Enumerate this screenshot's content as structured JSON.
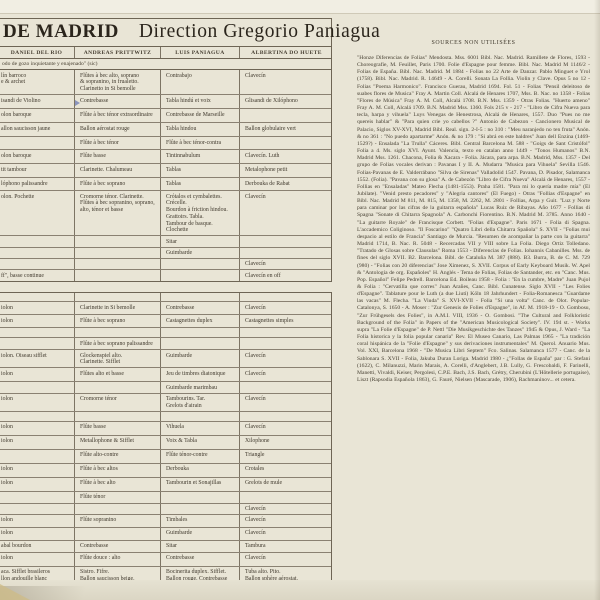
{
  "album": {
    "title_left": "DE MADRID",
    "title_right": "Direction Gregorio Paniagua"
  },
  "performers": [
    "DANIEL DEL RIO",
    "ANDREAS PRITTWITZ",
    "LUIS PANIAGUA",
    "ALBERTINA DO HUETE"
  ],
  "note": "odo de gozo inquietante y enajenado\" (sic)",
  "instrument_table": {
    "section1": {
      "rows": [
        {
          "h": 24,
          "cells": [
            "lín barroco\ne & archet",
            "Flûtes à bec alto, soprano\n& sopranino, in frualetto.\nClarinetto in Si bemolle",
            "Contrabajo",
            "Clavecín"
          ]
        },
        {
          "h": 14,
          "cells": [
            "isandi de Violino",
            "Contrebasse",
            "Tabla hindú et voix",
            "Glisandi de Xilóphono"
          ]
        },
        {
          "h": 14,
          "cells": [
            "olon baroque",
            "Flûte à bec ténor extraordinaire",
            "Contrebasse de Marseille",
            ""
          ]
        },
        {
          "h": 14,
          "cells": [
            "allon saucisson jaune",
            "Ballon aérostat rouge",
            "Tabla hindou",
            "Ballon globulaire vert"
          ]
        },
        {
          "h": 13,
          "cells": [
            "",
            "Flûte à bec ténor",
            "Flûte à bec ténor-contra",
            ""
          ]
        },
        {
          "h": 14,
          "cells": [
            "olon baroque",
            "Flûte basse",
            "Tintinnabulum",
            "Clavecín. Luth"
          ]
        },
        {
          "h": 14,
          "cells": [
            "tit tambour",
            "Clarinette. Chalumeau",
            "Tablas",
            "Metalophone petit"
          ]
        },
        {
          "h": 13,
          "cells": [
            "lóphono palissandre",
            "Flûte à bec soprano",
            "Tablas",
            "Derbouka de Rabat"
          ]
        },
        {
          "h": 38,
          "cells": [
            "olon. Pochette",
            "Cromorne ténor. Clarinette.\nFlûtes à bec sopranino, soprano,\nalto, ténor et basse",
            "Crótalos et cymbalettes.\nCrécelle.\nBourdon à friction hindou.\nGrattoirs. Tabla.\nTambour de basque. Clochette",
            "Clavecín"
          ]
        },
        {
          "h": 10,
          "cells": [
            "",
            "",
            "Sitar",
            ""
          ]
        },
        {
          "h": 10,
          "cells": [
            "",
            "",
            "Guimbarde",
            ""
          ]
        },
        {
          "h": 10,
          "cells": [
            "",
            "",
            "",
            "Clavecín"
          ]
        },
        {
          "h": 12,
          "cells": [
            "ff\", basse continue",
            "",
            "",
            "Clavecín en off"
          ]
        }
      ]
    },
    "section2": {
      "rows": [
        {
          "h": 8,
          "cells": [
            "",
            "",
            "",
            ""
          ]
        },
        {
          "h": 13,
          "cells": [
            "iolon",
            "Clarinette in Si bemolle",
            "Contrebasse",
            "Clavecín"
          ]
        },
        {
          "h": 13,
          "cells": [
            "iolon",
            "Flûte à bec soprano",
            "Castagnettes duplex",
            "Castagnettes simples"
          ]
        },
        {
          "h": 10,
          "cells": [
            "",
            "",
            "",
            ""
          ]
        },
        {
          "h": 12,
          "cells": [
            "",
            "Flûte à bec soprano palissandre",
            "",
            ""
          ]
        },
        {
          "h": 17,
          "cells": [
            "iolon. Oiseau sifflet",
            "Glockenspiel alto.\nClarinette. Sifflet",
            "Guimbarde",
            "Clavecín"
          ]
        },
        {
          "h": 14,
          "cells": [
            "iolon",
            "Flûtes alto et basse",
            "Jeu de timbres diatonique",
            "Clavecín"
          ]
        },
        {
          "h": 11,
          "cells": [
            "",
            "",
            "Guimbarde marimbau",
            ""
          ]
        },
        {
          "h": 17,
          "cells": [
            "iolon",
            "Cromorne ténor",
            "Tambourins. Tar.\nGrelots d'airain",
            "Clavecín"
          ]
        },
        {
          "h": 10,
          "cells": [
            "",
            "",
            "",
            ""
          ]
        },
        {
          "h": 14,
          "cells": [
            "iolon",
            "Flûte basse",
            "Vihuela",
            "Clavecín"
          ]
        },
        {
          "h": 14,
          "cells": [
            "iolon",
            "Metallophone & Sifflet",
            "Voix & Tabla",
            "Xilophone"
          ]
        },
        {
          "h": 14,
          "cells": [
            "",
            "Flûte alto-contre",
            "Flûte ténor-contre",
            "Triangle"
          ]
        },
        {
          "h": 14,
          "cells": [
            "iolon",
            "Flûte à bec altos",
            "Derbouka",
            "Crotales"
          ]
        },
        {
          "h": 14,
          "cells": [
            "iolon",
            "Flûte à bec alto",
            "Tambourin et Sonajillas",
            "Grelots de mule"
          ]
        },
        {
          "h": 12,
          "cells": [
            "",
            "Flûte ténor",
            "",
            ""
          ]
        },
        {
          "h": 11,
          "cells": [
            "",
            "",
            "",
            "Clavecín"
          ]
        },
        {
          "h": 13,
          "cells": [
            "iolon",
            "Flûte sopranino",
            "Timbales",
            "Clavecín"
          ]
        },
        {
          "h": 13,
          "cells": [
            "iolon",
            "",
            "Guimbarde",
            "Clavecín"
          ]
        },
        {
          "h": 12,
          "cells": [
            "abal bourdon",
            "Contrebasse",
            "Sitar",
            "Tambura"
          ]
        },
        {
          "h": 14,
          "cells": [
            "iolon",
            "Flûte douce : alto",
            "Contrebasse",
            "Clavecín"
          ]
        },
        {
          "h": 24,
          "cells": [
            "aca. Sifflet brasileros\nllon andouille blanc\niolon",
            "Sistro. Fifre.\nBallon saucisson beige.\nFlûte soprano. Clarinette",
            "Bocinerita duplex. Sifflet.\nBallon rouge. Contrebasse",
            "Tuba alto. Pito.\nBallon sphère aérostat.\nClavecín"
          ]
        }
      ]
    }
  },
  "sources": {
    "heading": "SOURCES NON UTILISÉES",
    "text": "\"Honze Diferencias de Folias\" Mendosta. Mss. 6001 Bibl. Nac. Madrid. Ramillete de Flores, 1593 - Choreografie, M. Feuillet, Paris 1700. Folie d'Espagne pour femme. Bibl. Nac. Madrid M 1146/2 - Folias de España. Bibl. Nac. Madrid. M 1884 - Folias no 22 Arte de Danzar. Pablo Minguet e Yrol (1758). Bibl. Nac. Madrid. R. 14649 - A. Corelli. Sonata La Follia. Violin y Clave. Opus 5 no 12 - Folias \"Poema Harmonico\". Francisco Guerau, Madrid 1694. Fol. 51 - Folias \"Pensil deleitoso de suabes flores de Musica\" Fray A. Martin Coll. Alcalá de Henares 1707, Mss. B. Nac. no 1358 - Folias \"Flores de Música\" Fray A. M. Coll, Alcalá 1708. B.N. Mss. 1359 - Otras Folias. \"Huerto ameno\" Fray A. M. Coll, Alcalá 1709. B.N. Madrid Mss. 1360. Fols 215 v - 217 - \"Libro de Cifra Nueva para tecla, harpa y vihuela\" Luys Venegas de Henestrosa, Alcalá de Henares, 1557. Duo \"Pues no me quereis hablar\" & \"Para quien crie yo cabellos ?\" Antonio de Cabezon - Cancionero Musical de Palacio, Siglos XV-XVI, Madrid Bibl. Real. sign. 2-I-5 : no 310 : \"Meu naranjedo no ten fruta\" Anón. & no 361 : \"No puedo apartarme\" Anón. & no 179 : \"Si abrá en este baldres\" Juan dell Enzina (1469-1529?) - Ensalada \"La Trulla\" Cáceres. Bibl. Central Barcelona M. 588 - \"Goigs de Sant Cristófol\" Folia a 4. Ms. siglo XVI. Ayunt. Valencia, texto en catalan anno 1449 - \"Tonos Humanos\" B.N. Madrid Mss. 1261. Chacona, Folia & Xacara - Folia. Jácara, para arpa. B.N. Madrid, Mss. 1357 - Del grupo de Folias vocales derivan : Pavanas I y II. A. Mudarra \"Musica para Vihuela\" Sevilla 1546. Folias-Pavanas de E. Valderrábano \"Silva de Sirenas\" Valladolid 1547. Pavana, D. Pisador, Salamanca 1552. (Folia). \"Pavana con su glosa\" A. de Cabezón \"Libro de Cifra Nueva\" Alcalá de Henares, 1557 - Follias en \"Ensaladas\" Mateo Flecha (1481-1553). Praha 1581. \"Para mi lo quería madre mía\" (El Jubilate). \"Venid presto pecadores\" y \"Alegria cantores\" (El Fuego) - Otras \"Follias d'Espagne\" en Bibl. Nac. Madrid M 811, M. 815, M. 1358, M. 2262, M. 2801 - Follias, Arpa y Guit. \"Luz y Norte para caminar por las cifras de la guitarra española\" Lucas Ruiz de Ribayas. Año 1677 - Follias di Spagna \"Sonate di Chitarra Spagnola\" A. Carbonchi Fiorentino. B.N. Madrid M. 3785. Anno 1640 - \"La guitarre Royale\" de Francisque Corbett. \"Folias d'Espagne\". Paris 1671 - Folia di Spagna. L'accademico Coliginoso. \"Il Foscarino\" \"Quatro Libri della Chitarra Spañola\" S. XVII - \"Folias mui despacio al estilo de Francia\" Santiago de Murcia. \"Resumen de acompañar la parte con la guitarra\" Madrid 1714, B. Nac. R. 5048 - Recercadas VII y VIII sobre La Folia. Diego Ortiz Tolledano. \"Tratado de Glosas sobre Clausulas\" Roma 1553 - Diferencias de Folias. Iohannis Cabanilles. Mss. de fines del siglo XVII. B2. Barcelona. Bibl. de Cataluña M. 387 (888). B3. Burra, B. de C. M. 729 (980) - \"Folias con 20 diferencias\" Jose Ximenez, S. XVII. Corpus of Early Keyboard Musik. W. Apel & \"Antología de org. Españoles\" H. Anglés - Tema de Folias, Folias de Santander, etc. en \"Canc. Mus. Pop. Español\" Felipe Pedrell. Barcelona Ed. Boileau 1958 - Folia : \"En la cumbre, Madre\" Juan Pujol & Folia : \"Cervatilla que corres\" Juan Arañes, Canc. Bibl. Cunatense. Siglo XVII - \"Les Folies d'Espagne\". Tablature pour le Luth (a due Liuti) Köln 18 Jahrhundert - Folia-Romanesca \"Guardame las vacas\" M. Flecha. \"La Viuda\" S. XVI-XVII - Folia \"Si una volta\" Canc. de Olot. Popular-Catalonya, S. 1650 - A. Moser : \"Zur Genesis de Folies d'Espagne\", in Af. M. 1918-19 - O. Gombosu, \"Zur Frühgesels des Folies\", in A.M.I. VIII, 1936 - O. Gombosi. \"The Cultural and Folkloristic Background of the Folia\" in Papers of the \"American Musicological Society\". IV. 194 st. - Works supra \"La Folie d'Espagne\" de P. Nettl \"Die Musikgeschichte des Tanzes\" 1945 & Opus, J. Ward - \"La Folia historica y la folia popular canaria\" Rev. El Museo Canario, Las Palmas 1965 - \"La tradición coral hispánica de la \"Folie d'Espagne\" y sus derivaciones instrumentales\" M. Querol. Anuario Mus. Vol. XXI, Barcelona 1968 - \"De Musica Libri Septem\" Fco. Salinas. Salamanca 1577 - Canc. de la Sablonara S. XVII - Folia, Jakuba Duran Loriga. Madrid 1980 - ¿\"Follas de España\" par : G. Stefani (1622), C. Milanuzzi, Marin Marais, A. Corelli, d'Anglebert, J.B. Lully, G. Frescobaldi, F. Farinelli, Manetti, Vivaldi, Keiser, Pergolesi, C.P.E. Bach, J.S. Bach, Grétry, Cherubini (L'Hôtellerie portugaise), Liszt (Rapsodia Española 1863), G. Fauré, Nielsen (Mascarade, 1906), Rachmaninov... et cetera."
  },
  "colors": {
    "paper": "#e9e5d6",
    "rule": "#6e6555",
    "ink": "#40392d",
    "pen_mark_blue": "#7b87b8"
  }
}
